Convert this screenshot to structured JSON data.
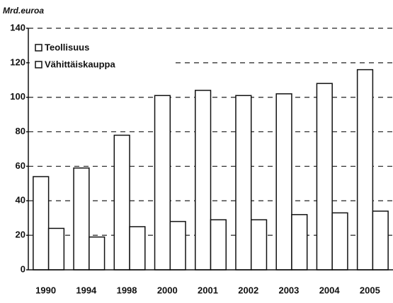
{
  "chart_data": {
    "type": "bar",
    "y_label": "Mrd.euroa",
    "categories": [
      "1990",
      "1994",
      "1998",
      "2000",
      "2001",
      "2002",
      "2003",
      "2004",
      "2005"
    ],
    "series": [
      {
        "name": "Teollisuus",
        "color": "#ffffff",
        "values": [
          54,
          59,
          78,
          101,
          104,
          101,
          102,
          108,
          116
        ]
      },
      {
        "name": "Vähittäiskauppa",
        "color": "#ffffff",
        "values": [
          24,
          19,
          25,
          28,
          29,
          29,
          32,
          33,
          34
        ]
      }
    ],
    "ylim": [
      0,
      140
    ],
    "yticks": [
      0,
      20,
      40,
      60,
      80,
      100,
      120,
      140
    ],
    "grid": true,
    "legend": "top-left"
  }
}
